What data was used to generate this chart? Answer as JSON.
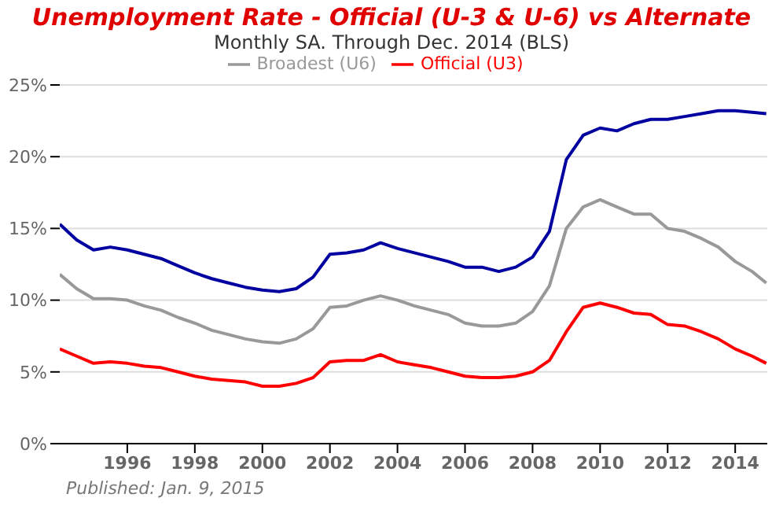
{
  "chart_data": {
    "type": "line",
    "title": "Unemployment Rate - Official (U-3 & U-6) vs Alternate",
    "subtitle": "Monthly SA. Through Dec. 2014 (BLS)",
    "annotations": [
      "Published: Jan. 9, 2015"
    ],
    "x": [
      1994,
      1994.5,
      1995,
      1995.5,
      1996,
      1996.5,
      1997,
      1997.5,
      1998,
      1998.5,
      1999,
      1999.5,
      2000,
      2000.5,
      2001,
      2001.5,
      2002,
      2002.5,
      2003,
      2003.5,
      2004,
      2004.5,
      2005,
      2005.5,
      2006,
      2006.5,
      2007,
      2007.5,
      2008,
      2008.5,
      2009,
      2009.5,
      2010,
      2010.5,
      2011,
      2011.5,
      2012,
      2012.5,
      2013,
      2013.5,
      2014,
      2014.5,
      2014.92
    ],
    "series": [
      {
        "name": "Official (U3)",
        "color": "#ff0000",
        "values": [
          6.6,
          6.1,
          5.6,
          5.7,
          5.6,
          5.4,
          5.3,
          5.0,
          4.7,
          4.5,
          4.4,
          4.3,
          4.0,
          4.0,
          4.2,
          4.6,
          5.7,
          5.8,
          5.8,
          6.2,
          5.7,
          5.5,
          5.3,
          5.0,
          4.7,
          4.6,
          4.6,
          4.7,
          5.0,
          5.8,
          7.8,
          9.5,
          9.8,
          9.5,
          9.1,
          9.0,
          8.3,
          8.2,
          7.8,
          7.3,
          6.6,
          6.1,
          5.6
        ]
      },
      {
        "name": "Broadest (U6)",
        "color": "#999999",
        "values": [
          11.8,
          10.8,
          10.1,
          10.1,
          10.0,
          9.6,
          9.3,
          8.8,
          8.4,
          7.9,
          7.6,
          7.3,
          7.1,
          7.0,
          7.3,
          8.0,
          9.5,
          9.6,
          10.0,
          10.3,
          10.0,
          9.6,
          9.3,
          9.0,
          8.4,
          8.2,
          8.2,
          8.4,
          9.2,
          11.0,
          15.0,
          16.5,
          17.0,
          16.5,
          16.0,
          16.0,
          15.0,
          14.8,
          14.3,
          13.7,
          12.7,
          12.0,
          11.2
        ]
      },
      {
        "color": "#0000a0",
        "values": [
          15.3,
          14.2,
          13.5,
          13.7,
          13.5,
          13.2,
          12.9,
          12.4,
          11.9,
          11.5,
          11.2,
          10.9,
          10.7,
          10.6,
          10.8,
          11.6,
          13.2,
          13.3,
          13.5,
          14.0,
          13.6,
          13.3,
          13.0,
          12.7,
          12.3,
          12.3,
          12.0,
          12.3,
          13.0,
          14.8,
          19.8,
          21.5,
          22.0,
          21.8,
          22.3,
          22.6,
          22.6,
          22.8,
          23.0,
          23.2,
          23.2,
          23.1,
          23.0
        ]
      }
    ],
    "xlim": [
      1994,
      2014.95
    ],
    "xticks": [
      1996,
      1998,
      2000,
      2002,
      2004,
      2006,
      2008,
      2010,
      2012,
      2014
    ],
    "ylim": [
      0,
      25
    ],
    "yticks": [
      {
        "value": 0,
        "label": "0%"
      },
      {
        "value": 5,
        "label": "5%"
      },
      {
        "value": 10,
        "label": "10%"
      },
      {
        "value": 15,
        "label": "15%"
      },
      {
        "value": 20,
        "label": "20%"
      },
      {
        "value": 25,
        "label": "25%"
      }
    ],
    "grid": "y",
    "legend": "top",
    "marker": "none",
    "line_style": "solid"
  }
}
